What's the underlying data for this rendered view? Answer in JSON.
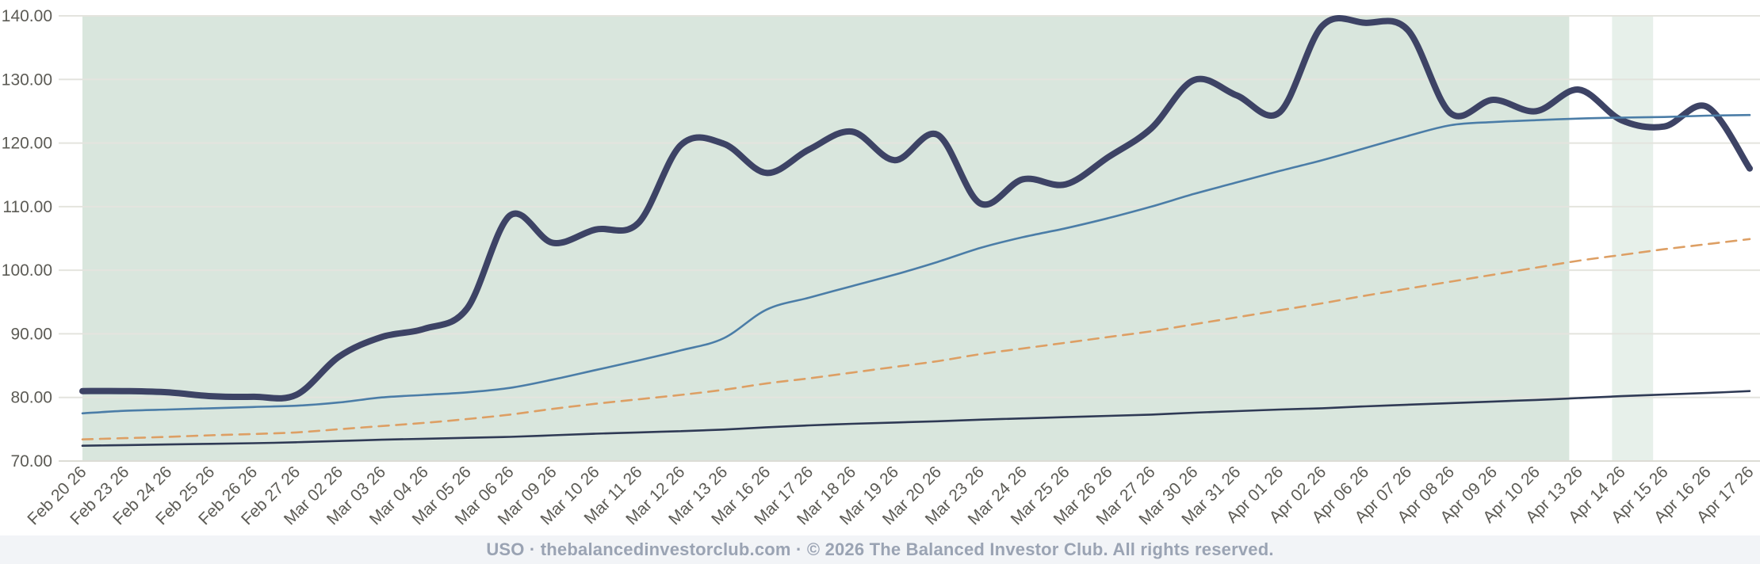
{
  "footer": {
    "text": "USO · thebalancedinvestorclub.com · © 2026 The Balanced Investor Club. All rights reserved."
  },
  "chart_data": {
    "type": "line",
    "title": "",
    "xlabel": "",
    "ylabel": "",
    "ylim": [
      70,
      140
    ],
    "y_step": 10,
    "y_tick_decimals": 2,
    "y_tick_labels": [
      "70.00",
      "80.00",
      "90.00",
      "100.00",
      "110.00",
      "120.00",
      "130.00",
      "140.00"
    ],
    "grid": true,
    "legend_position": "none",
    "x_labels": [
      "Feb 20 26",
      "Feb 23 26",
      "Feb 24 26",
      "Feb 25 26",
      "Feb 26 26",
      "Feb 27 26",
      "Mar 02 26",
      "Mar 03 26",
      "Mar 04 26",
      "Mar 05 26",
      "Mar 06 26",
      "Mar 09 26",
      "Mar 10 26",
      "Mar 11 26",
      "Mar 12 26",
      "Mar 13 26",
      "Mar 16 26",
      "Mar 17 26",
      "Mar 18 26",
      "Mar 19 26",
      "Mar 20 26",
      "Mar 23 26",
      "Mar 24 26",
      "Mar 25 26",
      "Mar 26 26",
      "Mar 27 26",
      "Mar 30 26",
      "Mar 31 26",
      "Apr 01 26",
      "Apr 02 26",
      "Apr 06 26",
      "Apr 07 26",
      "Apr 08 26",
      "Apr 09 26",
      "Apr 10 26",
      "Apr 13 26",
      "Apr 14 26",
      "Apr 15 26",
      "Apr 16 26",
      "Apr 17 26"
    ],
    "series": [
      {
        "name": "price-thick-navy",
        "color": "#3d4365",
        "width": 8,
        "dash": null,
        "values": [
          81.0,
          81.0,
          80.8,
          80.2,
          80.1,
          80.4,
          86.4,
          89.5,
          90.8,
          94.0,
          108.6,
          104.3,
          106.4,
          107.4,
          119.7,
          119.9,
          115.3,
          119.0,
          121.8,
          117.3,
          121.3,
          110.5,
          114.3,
          113.5,
          117.8,
          122.3,
          129.9,
          127.5,
          124.8,
          138.4,
          138.9,
          137.8,
          124.7,
          126.8,
          125.0,
          128.4,
          123.6,
          122.6,
          125.7,
          116.0
        ]
      },
      {
        "name": "baseline-dark-thin",
        "color": "#2f3a55",
        "width": 2.6,
        "dash": null,
        "values": [
          72.4,
          72.5,
          72.6,
          72.7,
          72.8,
          72.95,
          73.15,
          73.35,
          73.5,
          73.65,
          73.8,
          74.05,
          74.3,
          74.5,
          74.7,
          74.95,
          75.3,
          75.6,
          75.85,
          76.05,
          76.25,
          76.5,
          76.7,
          76.9,
          77.1,
          77.3,
          77.6,
          77.85,
          78.1,
          78.3,
          78.6,
          78.85,
          79.1,
          79.35,
          79.6,
          79.9,
          80.2,
          80.45,
          80.7,
          81.0
        ]
      },
      {
        "name": "projection-orange-dashed",
        "color": "#dd9f64",
        "width": 2.6,
        "dash": "13 9",
        "values": [
          73.4,
          73.6,
          73.8,
          74.05,
          74.25,
          74.5,
          75.0,
          75.5,
          76.0,
          76.6,
          77.3,
          78.2,
          79.0,
          79.7,
          80.4,
          81.2,
          82.2,
          83.0,
          83.9,
          84.8,
          85.7,
          86.8,
          87.7,
          88.6,
          89.5,
          90.4,
          91.5,
          92.6,
          93.7,
          94.8,
          96.0,
          97.1,
          98.2,
          99.3,
          100.4,
          101.5,
          102.4,
          103.3,
          104.1,
          104.9
        ]
      },
      {
        "name": "trend-blue-thin",
        "color": "#4b7da7",
        "width": 2.6,
        "dash": null,
        "values": [
          77.5,
          77.9,
          78.1,
          78.3,
          78.5,
          78.7,
          79.2,
          80.0,
          80.4,
          80.8,
          81.5,
          82.8,
          84.3,
          85.8,
          87.4,
          89.3,
          93.8,
          95.7,
          97.5,
          99.3,
          101.3,
          103.5,
          105.2,
          106.6,
          108.2,
          110.0,
          112.0,
          113.8,
          115.6,
          117.3,
          119.2,
          121.1,
          122.8,
          123.3,
          123.6,
          123.85,
          124.0,
          124.1,
          124.3,
          124.4
        ]
      }
    ],
    "highlight_bands": [
      {
        "name": "main-session-band",
        "from_index": 0,
        "to_index": 34.78,
        "color": "#d9e6dd"
      },
      {
        "name": "secondary-session-band",
        "from_index": 35.78,
        "to_index": 36.74,
        "color": "#e7f0ea"
      }
    ],
    "colors": {
      "background": "#ffffff",
      "grid": "#e4e4de",
      "axis_line": "#dcdcd5",
      "tick_label": "#5c5b55"
    }
  }
}
